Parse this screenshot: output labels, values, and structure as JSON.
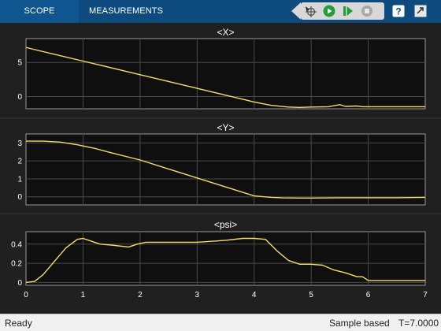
{
  "toolstrip": {
    "tabs": [
      {
        "label": "SCOPE"
      },
      {
        "label": "MEASUREMENTS"
      }
    ],
    "buttons": [
      {
        "name": "select-tool-icon"
      },
      {
        "name": "run-icon"
      },
      {
        "name": "step-forward-icon"
      },
      {
        "name": "stop-icon"
      },
      {
        "name": "help-icon"
      },
      {
        "name": "undock-icon"
      }
    ]
  },
  "status": {
    "left": "Ready",
    "mode": "Sample based",
    "time": "T=7.0000"
  },
  "colors": {
    "trace": "#f2dc6b",
    "axes_bg": "#0f0f0f",
    "figure_bg": "#202020",
    "grid": "#4a4a4a",
    "toolstrip": "#0d4a7e"
  },
  "chart_data": [
    {
      "type": "line",
      "title": "<X>",
      "xlim": [
        0,
        7
      ],
      "ylim": [
        -1.8,
        8.5
      ],
      "yticks": [
        0,
        5
      ],
      "grid": true,
      "x": [
        0,
        0.1,
        0.5,
        1,
        2,
        3,
        4,
        4.3,
        4.6,
        4.8,
        5,
        5.3,
        5.5,
        5.6,
        5.8,
        5.9,
        6,
        6.5,
        7
      ],
      "values": [
        7.2,
        7.0,
        6.2,
        5.2,
        3.2,
        1.2,
        -0.8,
        -1.3,
        -1.55,
        -1.6,
        -1.55,
        -1.5,
        -1.2,
        -1.45,
        -1.4,
        -1.5,
        -1.5,
        -1.5,
        -1.5
      ]
    },
    {
      "type": "line",
      "title": "<Y>",
      "xlim": [
        0,
        7
      ],
      "ylim": [
        -0.45,
        3.5
      ],
      "yticks": [
        0,
        1,
        2,
        3
      ],
      "grid": true,
      "x": [
        0,
        0.3,
        0.6,
        0.9,
        1.2,
        1.5,
        2,
        2.5,
        3,
        3.5,
        4,
        4.3,
        4.5,
        4.8,
        5,
        5.5,
        6,
        6.5,
        7
      ],
      "values": [
        3.1,
        3.1,
        3.05,
        2.9,
        2.7,
        2.45,
        2.05,
        1.55,
        1.05,
        0.55,
        0.05,
        -0.03,
        -0.06,
        -0.07,
        -0.07,
        -0.05,
        -0.05,
        -0.05,
        -0.03
      ]
    },
    {
      "type": "line",
      "title": "<psi>",
      "xlim": [
        0,
        7
      ],
      "ylim": [
        -0.03,
        0.53
      ],
      "yticks": [
        0,
        0.2,
        0.4
      ],
      "grid": true,
      "x": [
        0,
        0.15,
        0.3,
        0.5,
        0.7,
        0.9,
        1.0,
        1.1,
        1.3,
        1.5,
        1.8,
        1.95,
        2.1,
        2.5,
        3,
        3.5,
        3.8,
        4.0,
        4.2,
        4.4,
        4.6,
        4.8,
        5.0,
        5.2,
        5.4,
        5.6,
        5.8,
        5.9,
        6,
        6.5,
        7
      ],
      "values": [
        0.0,
        0.01,
        0.08,
        0.22,
        0.36,
        0.45,
        0.46,
        0.44,
        0.4,
        0.39,
        0.37,
        0.4,
        0.42,
        0.42,
        0.42,
        0.44,
        0.46,
        0.46,
        0.45,
        0.33,
        0.23,
        0.19,
        0.19,
        0.18,
        0.13,
        0.1,
        0.06,
        0.06,
        0.02,
        0.02,
        0.02
      ]
    }
  ],
  "x_tick_labels": [
    "0",
    "1",
    "2",
    "3",
    "4",
    "5",
    "6",
    "7"
  ]
}
